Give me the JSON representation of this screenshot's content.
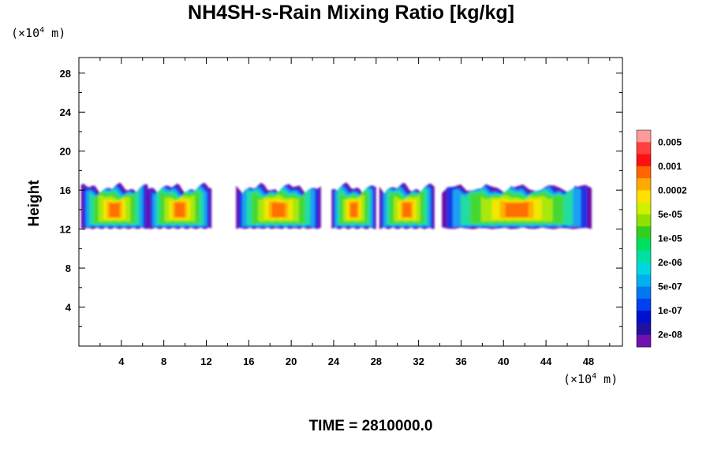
{
  "chart_data": {
    "type": "heatmap",
    "title": "NH4SH-s-Rain Mixing Ratio [kg/kg]",
    "ylabel": "Height",
    "x_unit": "(×10⁴ m)",
    "y_unit": "(×10⁴ m)",
    "x_ticks": [
      4,
      8,
      12,
      16,
      20,
      24,
      28,
      32,
      36,
      40,
      44,
      48
    ],
    "y_ticks": [
      4,
      8,
      12,
      16,
      20,
      24,
      28
    ],
    "xlim": [
      0,
      51.2
    ],
    "ylim": [
      0,
      29.6
    ],
    "grid": false,
    "legend_position": "right",
    "colorbar": {
      "labels": [
        "0.005",
        "0.001",
        "0.0002",
        "5e-05",
        "1e-05",
        "2e-06",
        "5e-07",
        "1e-07",
        "2e-08"
      ],
      "colors_top_to_bottom": [
        "#ff9a9a",
        "#ff4040",
        "#ff1010",
        "#ff6600",
        "#ffaa00",
        "#ffe000",
        "#d0f000",
        "#90e000",
        "#30d020",
        "#00e060",
        "#00e0a0",
        "#00d8e0",
        "#00b0f0",
        "#0078f0",
        "#0040f0",
        "#0010d0",
        "#2010a0",
        "#7010b0"
      ]
    },
    "cloud_band": {
      "y_range": [
        12.2,
        16.2
      ],
      "core_y": [
        13,
        15
      ]
    },
    "cloud_cells": [
      {
        "x": [
          0.2,
          6.5
        ],
        "peak": "5e-05"
      },
      {
        "x": [
          6.5,
          12.5
        ],
        "peak": "5e-05"
      },
      {
        "x": [
          14.8,
          22.8
        ],
        "peak": "5e-05"
      },
      {
        "x": [
          23.8,
          28.0
        ],
        "peak": "5e-05"
      },
      {
        "x": [
          28.3,
          33.5
        ],
        "peak": "5e-05"
      },
      {
        "x": [
          34.2,
          48.3
        ],
        "peak": "5e-05"
      }
    ]
  },
  "time_label": "TIME = 2810000.0"
}
